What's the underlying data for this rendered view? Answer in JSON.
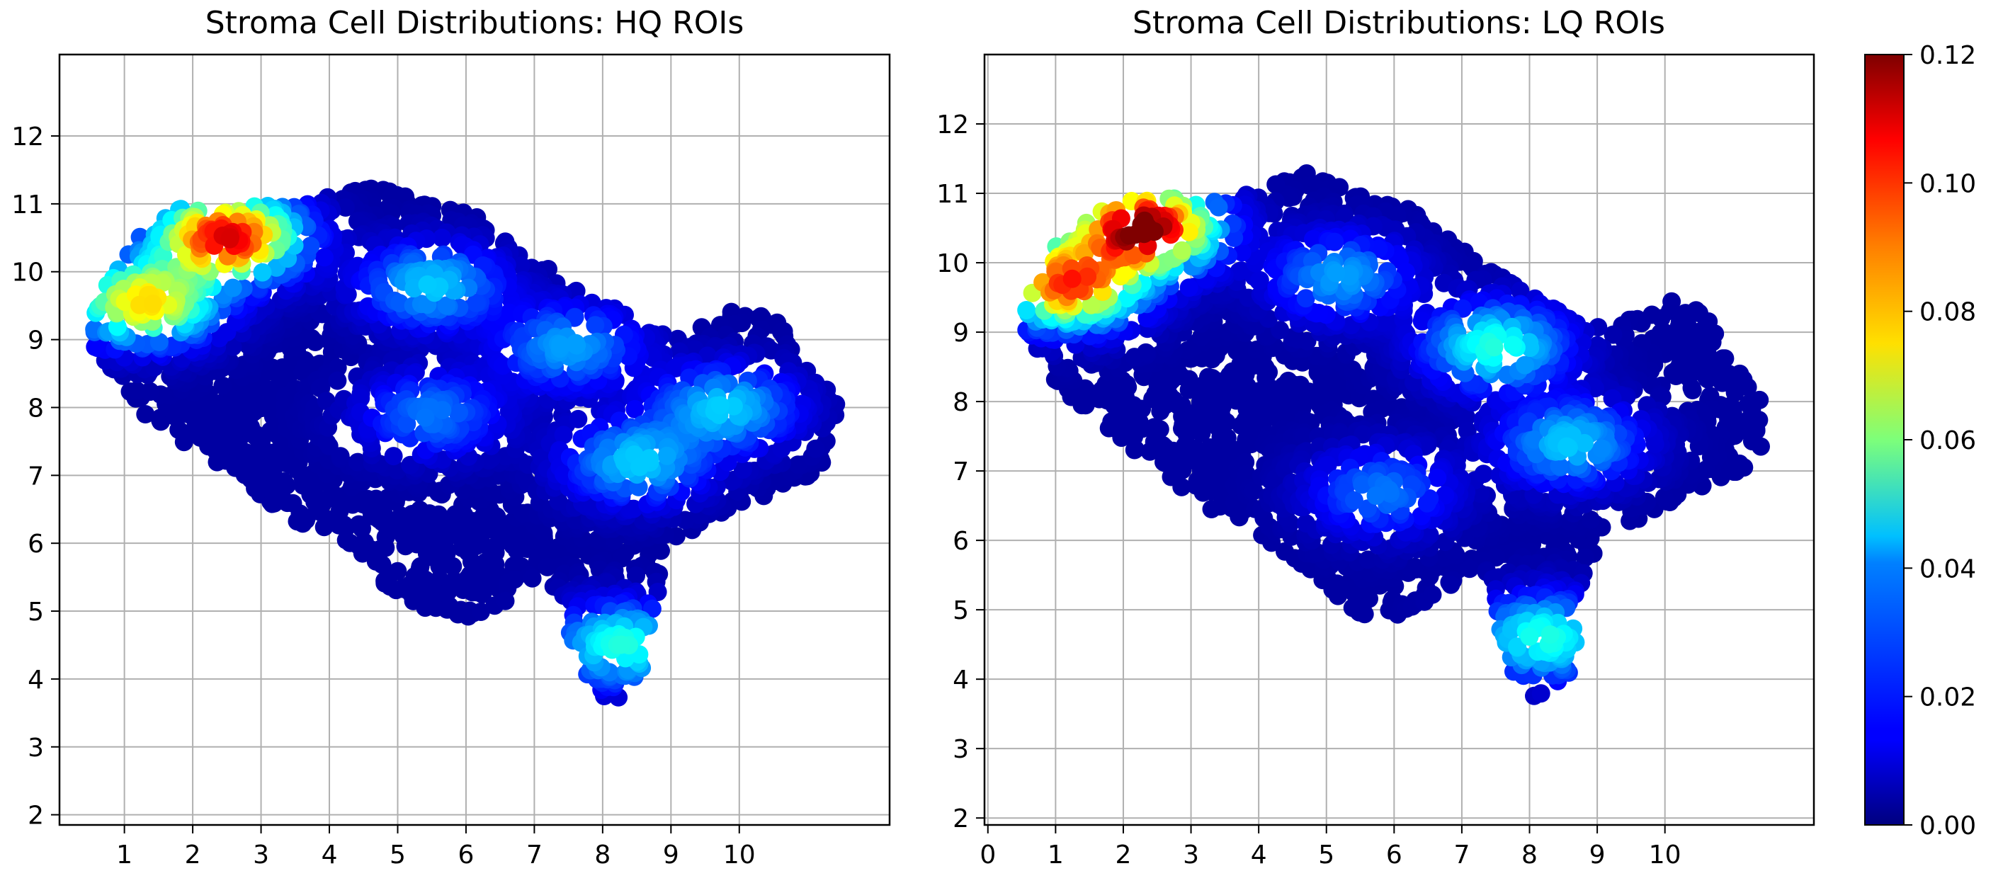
{
  "chart_data": [
    {
      "type": "scatter",
      "title": "Stroma Cell Distributions: HQ ROIs",
      "xlabel": "",
      "ylabel": "",
      "xlim": [
        0.05,
        12.2
      ],
      "ylim": [
        1.85,
        13.2
      ],
      "xticks": [
        "1",
        "2",
        "3",
        "4",
        "5",
        "6",
        "7",
        "8",
        "9",
        "10"
      ],
      "yticks": [
        "2",
        "3",
        "4",
        "5",
        "6",
        "7",
        "8",
        "9",
        "10",
        "11",
        "12"
      ],
      "grid": true,
      "density_peaks": [
        {
          "x": 2.5,
          "y": 10.5,
          "value": 0.105
        },
        {
          "x": 1.3,
          "y": 9.55,
          "value": 0.075
        },
        {
          "x": 8.3,
          "y": 4.5,
          "value": 0.045
        },
        {
          "x": 8.5,
          "y": 7.2,
          "value": 0.035
        },
        {
          "x": 9.8,
          "y": 8.0,
          "value": 0.035
        },
        {
          "x": 5.5,
          "y": 9.8,
          "value": 0.035
        },
        {
          "x": 7.5,
          "y": 8.9,
          "value": 0.03
        },
        {
          "x": 5.5,
          "y": 7.9,
          "value": 0.025
        }
      ]
    },
    {
      "type": "scatter",
      "title": "Stroma Cell Distributions: LQ ROIs",
      "xlabel": "",
      "ylabel": "",
      "xlim": [
        -0.05,
        12.2
      ],
      "ylim": [
        1.9,
        13.0
      ],
      "xticks": [
        "0",
        "1",
        "2",
        "3",
        "4",
        "5",
        "6",
        "7",
        "8",
        "9",
        "10"
      ],
      "yticks": [
        "2",
        "3",
        "4",
        "5",
        "6",
        "7",
        "8",
        "9",
        "10",
        "11",
        "12"
      ],
      "grid": true,
      "density_peaks": [
        {
          "x": 2.3,
          "y": 10.5,
          "value": 0.12
        },
        {
          "x": 1.2,
          "y": 9.7,
          "value": 0.095
        },
        {
          "x": 7.5,
          "y": 8.8,
          "value": 0.045
        },
        {
          "x": 8.2,
          "y": 4.6,
          "value": 0.045
        },
        {
          "x": 8.6,
          "y": 7.4,
          "value": 0.035
        },
        {
          "x": 5.2,
          "y": 9.8,
          "value": 0.03
        },
        {
          "x": 5.8,
          "y": 6.7,
          "value": 0.025
        }
      ]
    }
  ],
  "colorbar": {
    "colormap": "jet",
    "range": [
      0.0,
      0.12
    ],
    "ticks": [
      "0.00",
      "0.02",
      "0.04",
      "0.06",
      "0.08",
      "0.10",
      "0.12"
    ]
  }
}
